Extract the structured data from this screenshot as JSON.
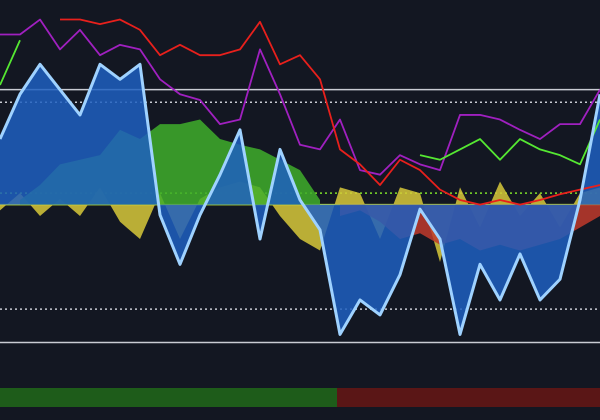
{
  "chart_data": {
    "type": "line",
    "x": [
      0,
      1,
      2,
      3,
      4,
      5,
      6,
      7,
      8,
      9,
      10,
      11,
      12,
      13,
      14,
      15,
      16,
      17,
      18,
      19,
      20,
      21,
      22,
      23,
      24,
      25,
      26,
      27,
      28,
      29,
      30
    ],
    "xlim": [
      0,
      30
    ],
    "ylim": [
      -157,
      178
    ],
    "series": [
      {
        "kind": "area",
        "color": "#d8c93a",
        "values": [
          -5,
          10,
          -10,
          5,
          -10,
          15,
          -15,
          -30,
          10,
          -30,
          5,
          15,
          20,
          15,
          -10,
          -30,
          -40,
          15,
          10,
          -30,
          15,
          10,
          -50,
          15,
          -20,
          20,
          -10,
          10,
          -20,
          10,
          15
        ]
      },
      {
        "kind": "area",
        "color": "#c0392b",
        "values": [
          null,
          null,
          null,
          null,
          null,
          null,
          null,
          null,
          null,
          null,
          null,
          null,
          null,
          null,
          null,
          null,
          null,
          -10,
          -5,
          -15,
          -30,
          -25,
          -35,
          -30,
          -40,
          -35,
          -40,
          -35,
          -30,
          -20,
          -10
        ]
      },
      {
        "kind": "area",
        "color": "#3fae2a",
        "values": [
          null,
          4,
          17,
          35,
          39,
          43,
          65,
          57,
          70,
          70,
          74,
          57,
          52,
          48,
          39,
          30,
          4,
          null,
          null,
          null,
          null,
          null,
          null,
          null,
          null,
          null,
          null,
          null,
          null,
          null,
          null
        ]
      },
      {
        "kind": "area",
        "color": "#1f5fbf",
        "values": [
          57,
          96,
          122,
          100,
          78,
          122,
          109,
          122,
          -9,
          -52,
          -9,
          26,
          65,
          -30,
          48,
          4,
          -22,
          -113,
          -83,
          -96,
          -61,
          -4,
          -30,
          -113,
          -52,
          -83,
          -43,
          -83,
          -65,
          4,
          96
        ]
      },
      {
        "kind": "line",
        "color": "#a020c0",
        "values": [
          148,
          148,
          161,
          135,
          152,
          130,
          139,
          135,
          109,
          96,
          91,
          70,
          74,
          135,
          96,
          52,
          48,
          74,
          30,
          26,
          43,
          35,
          30,
          78,
          78,
          74,
          65,
          57,
          70,
          70,
          100
        ]
      },
      {
        "kind": "line",
        "color": "#e8201c",
        "values": [
          null,
          null,
          null,
          161,
          161,
          157,
          161,
          152,
          130,
          139,
          130,
          130,
          135,
          159,
          122,
          130,
          109,
          48,
          35,
          17,
          39,
          30,
          13,
          4,
          0,
          4,
          0,
          4,
          9,
          13,
          17
        ]
      },
      {
        "kind": "line",
        "color": "#55e832",
        "values": [
          104,
          143,
          null,
          null,
          null,
          null,
          null,
          null,
          null,
          null,
          null,
          null,
          null,
          null,
          null,
          null,
          null,
          null,
          null,
          null,
          null,
          43,
          39,
          48,
          57,
          39,
          57,
          48,
          43,
          35,
          74
        ]
      },
      {
        "kind": "line",
        "color": "#9fd2ff",
        "values": [
          57,
          96,
          122,
          100,
          78,
          122,
          109,
          122,
          -9,
          -52,
          -9,
          26,
          65,
          -30,
          48,
          4,
          -22,
          -113,
          -83,
          -96,
          -61,
          -4,
          -30,
          -113,
          -52,
          -83,
          -43,
          -83,
          -65,
          4,
          96
        ]
      }
    ],
    "hlines": [
      {
        "value": 100,
        "color": "#c9ccd4",
        "dash": false
      },
      {
        "value": 89,
        "color": "#c9ccd4",
        "dash": true
      },
      {
        "value": 10,
        "color": "#7ee02a",
        "dash": true
      },
      {
        "value": 0,
        "color": "#c8f03a",
        "dash": false
      },
      {
        "value": -91,
        "color": "#c9ccd4",
        "dash": true
      },
      {
        "value": -120,
        "color": "#c9ccd4",
        "dash": false
      }
    ],
    "regime": {
      "switch": 16.85,
      "colors": [
        "#1e5c1a",
        "#5a1616"
      ]
    }
  }
}
